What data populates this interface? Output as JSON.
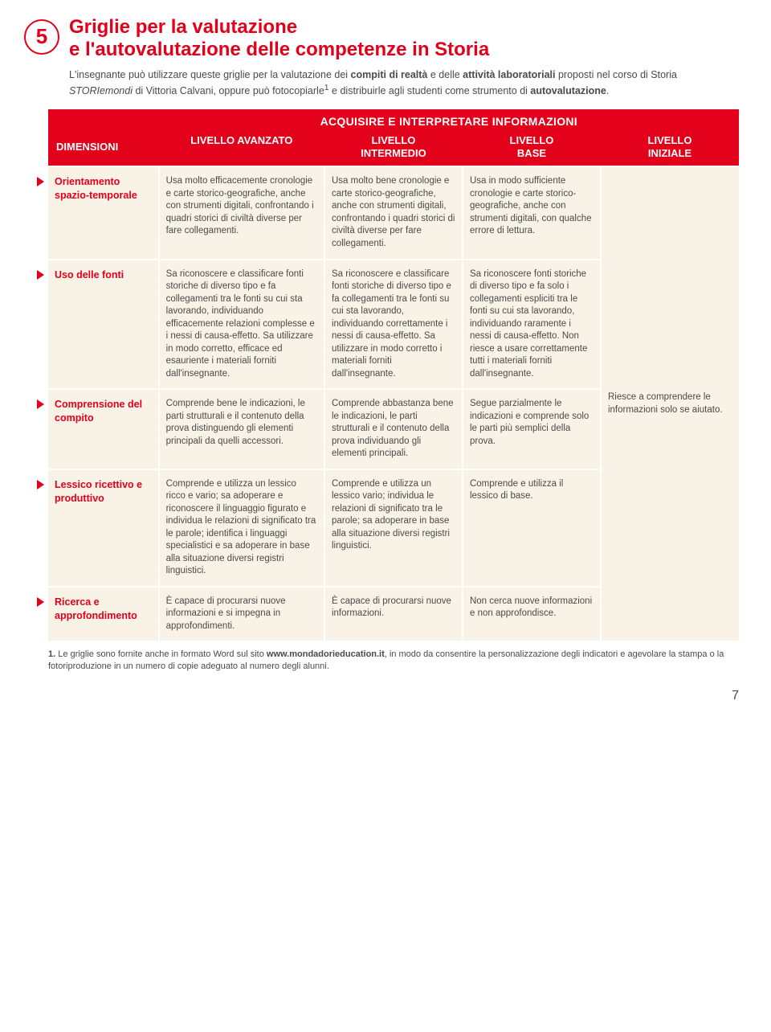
{
  "badge_number": "5",
  "title_line1": "Griglie per la valutazione",
  "title_line2": "e l'autovalutazione delle competenze in Storia",
  "intro_html": "L'insegnante può utilizzare queste griglie per la valutazione dei <b>compiti di realtà</b> e delle <b>attività laboratoriali</b> proposti nel corso di Storia <i>STORIemondi</i> di Vittoria Calvani, oppure può fotocopiarle<sup>1</sup> e distribuirle agli studenti come strumento di <b>autovalutazione</b>.",
  "banner": "ACQUISIRE E INTERPRETARE INFORMAZIONI",
  "headers": {
    "dim": "DIMENSIONI",
    "c1": "LIVELLO AVANZATO",
    "c2": "LIVELLO\nINTERMEDIO",
    "c3": "LIVELLO\nBASE",
    "c4": "LIVELLO\nINIZIALE"
  },
  "rows": [
    {
      "dim": "Orientamento spazio-temporale",
      "c1": "Usa molto efficacemente cronologie e carte storico-geografiche, anche con strumenti digitali, confrontando i quadri storici di civiltà diverse per fare collegamenti.",
      "c2": "Usa molto bene cronologie e carte storico-geografiche, anche con strumenti digitali, confrontando i quadri storici di civiltà diverse per fare collegamenti.",
      "c3": "Usa in modo sufficiente cronologie e carte storico-geografiche, anche con strumenti digitali, con qualche errore di lettura."
    },
    {
      "dim": "Uso delle fonti",
      "c1": "Sa riconoscere e classificare fonti storiche di diverso tipo e fa collegamenti tra le fonti su cui sta lavorando, individuando efficacemente relazioni complesse e i nessi di causa-effetto. Sa utilizzare in modo corretto, efficace ed esauriente i materiali forniti dall'insegnante.",
      "c2": "Sa riconoscere e classificare fonti storiche di diverso tipo e fa collegamenti tra le fonti su cui sta lavorando, individuando correttamente i nessi di causa-effetto. Sa utilizzare in modo corretto i materiali forniti dall'insegnante.",
      "c3": "Sa riconoscere fonti storiche di diverso tipo e fa solo i collegamenti espliciti tra le fonti su cui sta lavorando, individuando raramente i nessi di causa-effetto. Non riesce a usare correttamente tutti i materiali forniti dall'insegnante."
    },
    {
      "dim": "Comprensione del compito",
      "c1": "Comprende bene le indicazioni, le parti strutturali e il contenuto della prova distinguendo gli elementi principali da quelli accessori.",
      "c2": "Comprende abbastanza bene le indicazioni, le parti strutturali e il contenuto della prova individuando gli elementi principali.",
      "c3": "Segue parzialmente le indicazioni e comprende solo le parti più semplici della prova."
    },
    {
      "dim": "Lessico ricettivo e produttivo",
      "c1": "Comprende e utilizza un lessico ricco e vario; sa adoperare e riconoscere il linguaggio figurato e individua le relazioni di significato tra le parole; identifica i linguaggi specialistici e sa adoperare in base alla situazione diversi registri linguistici.",
      "c2": "Comprende e utilizza un lessico vario; individua le relazioni di significato tra le parole; sa adoperare in base alla situazione diversi registri linguistici.",
      "c3": "Comprende e utilizza il lessico di base."
    },
    {
      "dim": "Ricerca e approfondimento",
      "c1": "È capace di procurarsi nuove informazioni e si impegna in approfondimenti.",
      "c2": "È capace di procurarsi nuove informazioni.",
      "c3": "Non cerca nuove informazioni e non approfondisce."
    }
  ],
  "merged_c4": "Riesce a comprendere le informazioni solo se aiutato.",
  "footnote_html": "<b>1.</b> Le griglie sono fornite anche in formato Word sul sito <b>www.mondadorieducation.it</b>, in modo da consentire la personalizzazione degli indicatori e agevolare la stampa o la fotoriproduzione in un numero di copie adeguato al numero degli alunni.",
  "page_number": "7",
  "colors": {
    "accent": "#e2001a",
    "bg_cell": "#f9f3e7",
    "text": "#4a4a4a"
  }
}
